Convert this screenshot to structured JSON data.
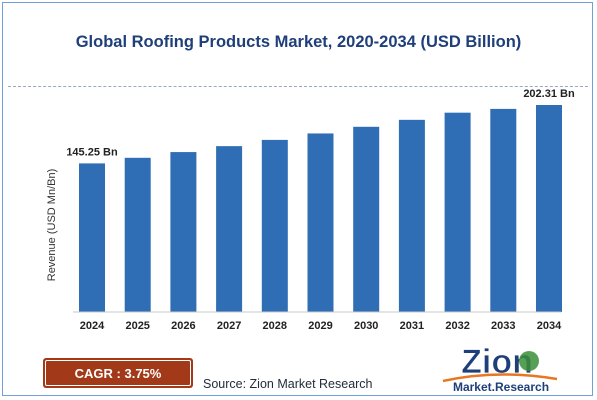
{
  "title": "Global Roofing Products Market, 2020-2034 (USD Billion)",
  "cagr": {
    "label": "CAGR :",
    "value": "3.75%"
  },
  "source": "Source: Zion Market Research",
  "logo": {
    "main": "Zion",
    "sub": "Market.Research"
  },
  "colors": {
    "bar": "#2f6eb4",
    "title": "#1f3f7a",
    "cagr_bg": "#a23a1a"
  },
  "chart_data": {
    "type": "bar",
    "title": "Global Roofing Products Market, 2020-2034 (USD Billion)",
    "xlabel": "",
    "ylabel": "Revenue (USD Mn/Bn)",
    "categories": [
      "2024",
      "2025",
      "2026",
      "2027",
      "2028",
      "2029",
      "2030",
      "2031",
      "2032",
      "2033",
      "2034"
    ],
    "values": [
      145.25,
      150.7,
      156.3,
      162.1,
      168.2,
      174.5,
      181.0,
      187.8,
      194.8,
      198.5,
      202.31
    ],
    "data_labels": {
      "0": "145.25 Bn",
      "10": "202.31 Bn"
    },
    "ylim": [
      0,
      210
    ],
    "grid": false,
    "legend": "none"
  }
}
